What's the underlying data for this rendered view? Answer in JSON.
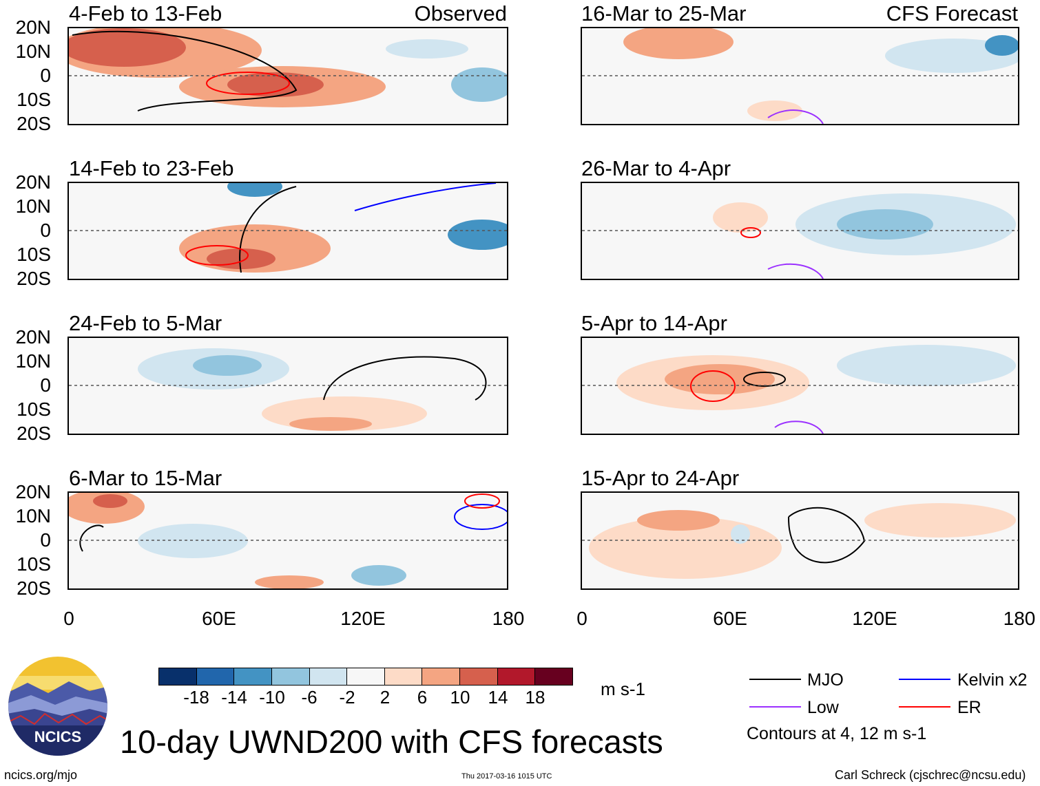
{
  "header": {
    "observed_label": "Observed",
    "forecast_label": "CFS Forecast"
  },
  "axes": {
    "lat_ticks": [
      "20N",
      "10N",
      "0",
      "10S",
      "20S"
    ],
    "lon_ticks": [
      "0",
      "60E",
      "120E",
      "180"
    ]
  },
  "panels": [
    {
      "title": "4-Feb to 13-Feb"
    },
    {
      "title": "14-Feb to 23-Feb"
    },
    {
      "title": "24-Feb to 5-Mar"
    },
    {
      "title": "6-Mar to 15-Mar"
    },
    {
      "title": "16-Mar to 25-Mar"
    },
    {
      "title": "26-Mar to 4-Apr"
    },
    {
      "title": "5-Apr to 14-Apr"
    },
    {
      "title": "15-Apr to 24-Apr"
    }
  ],
  "colorbar": {
    "labels": [
      "-18",
      "-14",
      "-10",
      "-6",
      "-2",
      "2",
      "6",
      "10",
      "14",
      "18"
    ],
    "colors": [
      "#08306b",
      "#2166ac",
      "#4393c3",
      "#92c5de",
      "#d1e5f0",
      "#f7f7f7",
      "#fddbc7",
      "#f4a582",
      "#d6604d",
      "#b2182b",
      "#67001f"
    ],
    "units": "m s-1"
  },
  "legend": {
    "items": [
      {
        "label": "MJO",
        "color": "#000000"
      },
      {
        "label": "Kelvin x2",
        "color": "#0000ff"
      },
      {
        "label": "Low",
        "color": "#9b30ff"
      },
      {
        "label": "ER",
        "color": "#ff0000"
      }
    ],
    "note": "Contours at 4, 12 m s-1"
  },
  "logo": {
    "text": "NCICS"
  },
  "footer": {
    "main_title": "10-day UWND200 with CFS forecasts",
    "website": "ncics.org/mjo",
    "timestamp": "Thu 2017-03-16 1015 UTC",
    "credit": "Carl Schreck (cjschrec@ncsu.edu)"
  }
}
